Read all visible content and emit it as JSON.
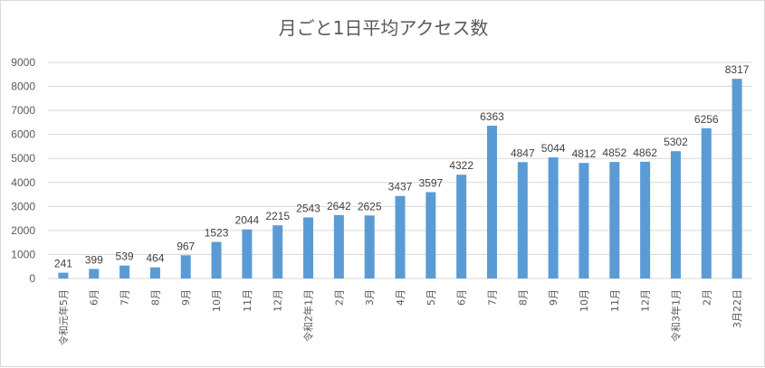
{
  "chart_data": {
    "type": "bar",
    "title": "月ごと1日平均アクセス数",
    "xlabel": "",
    "ylabel": "",
    "ylim": [
      0,
      9000
    ],
    "y_ticks": [
      0,
      1000,
      2000,
      3000,
      4000,
      5000,
      6000,
      7000,
      8000,
      9000
    ],
    "grid": true,
    "legend": "none",
    "bar_color": "#5b9bd5",
    "categories": [
      "令和元年5月",
      "6月",
      "7月",
      "8月",
      "9月",
      "10月",
      "11月",
      "12月",
      "令和2年1月",
      "2月",
      "3月",
      "4月",
      "5月",
      "6月",
      "7月",
      "8月",
      "9月",
      "10月",
      "11月",
      "12月",
      "令和3年1月",
      "2月",
      "3月22日"
    ],
    "values": [
      241,
      399,
      539,
      464,
      967,
      1523,
      2044,
      2215,
      2543,
      2642,
      2625,
      3437,
      3597,
      4322,
      6363,
      4847,
      5044,
      4812,
      4852,
      4862,
      5302,
      6256,
      8317
    ]
  }
}
